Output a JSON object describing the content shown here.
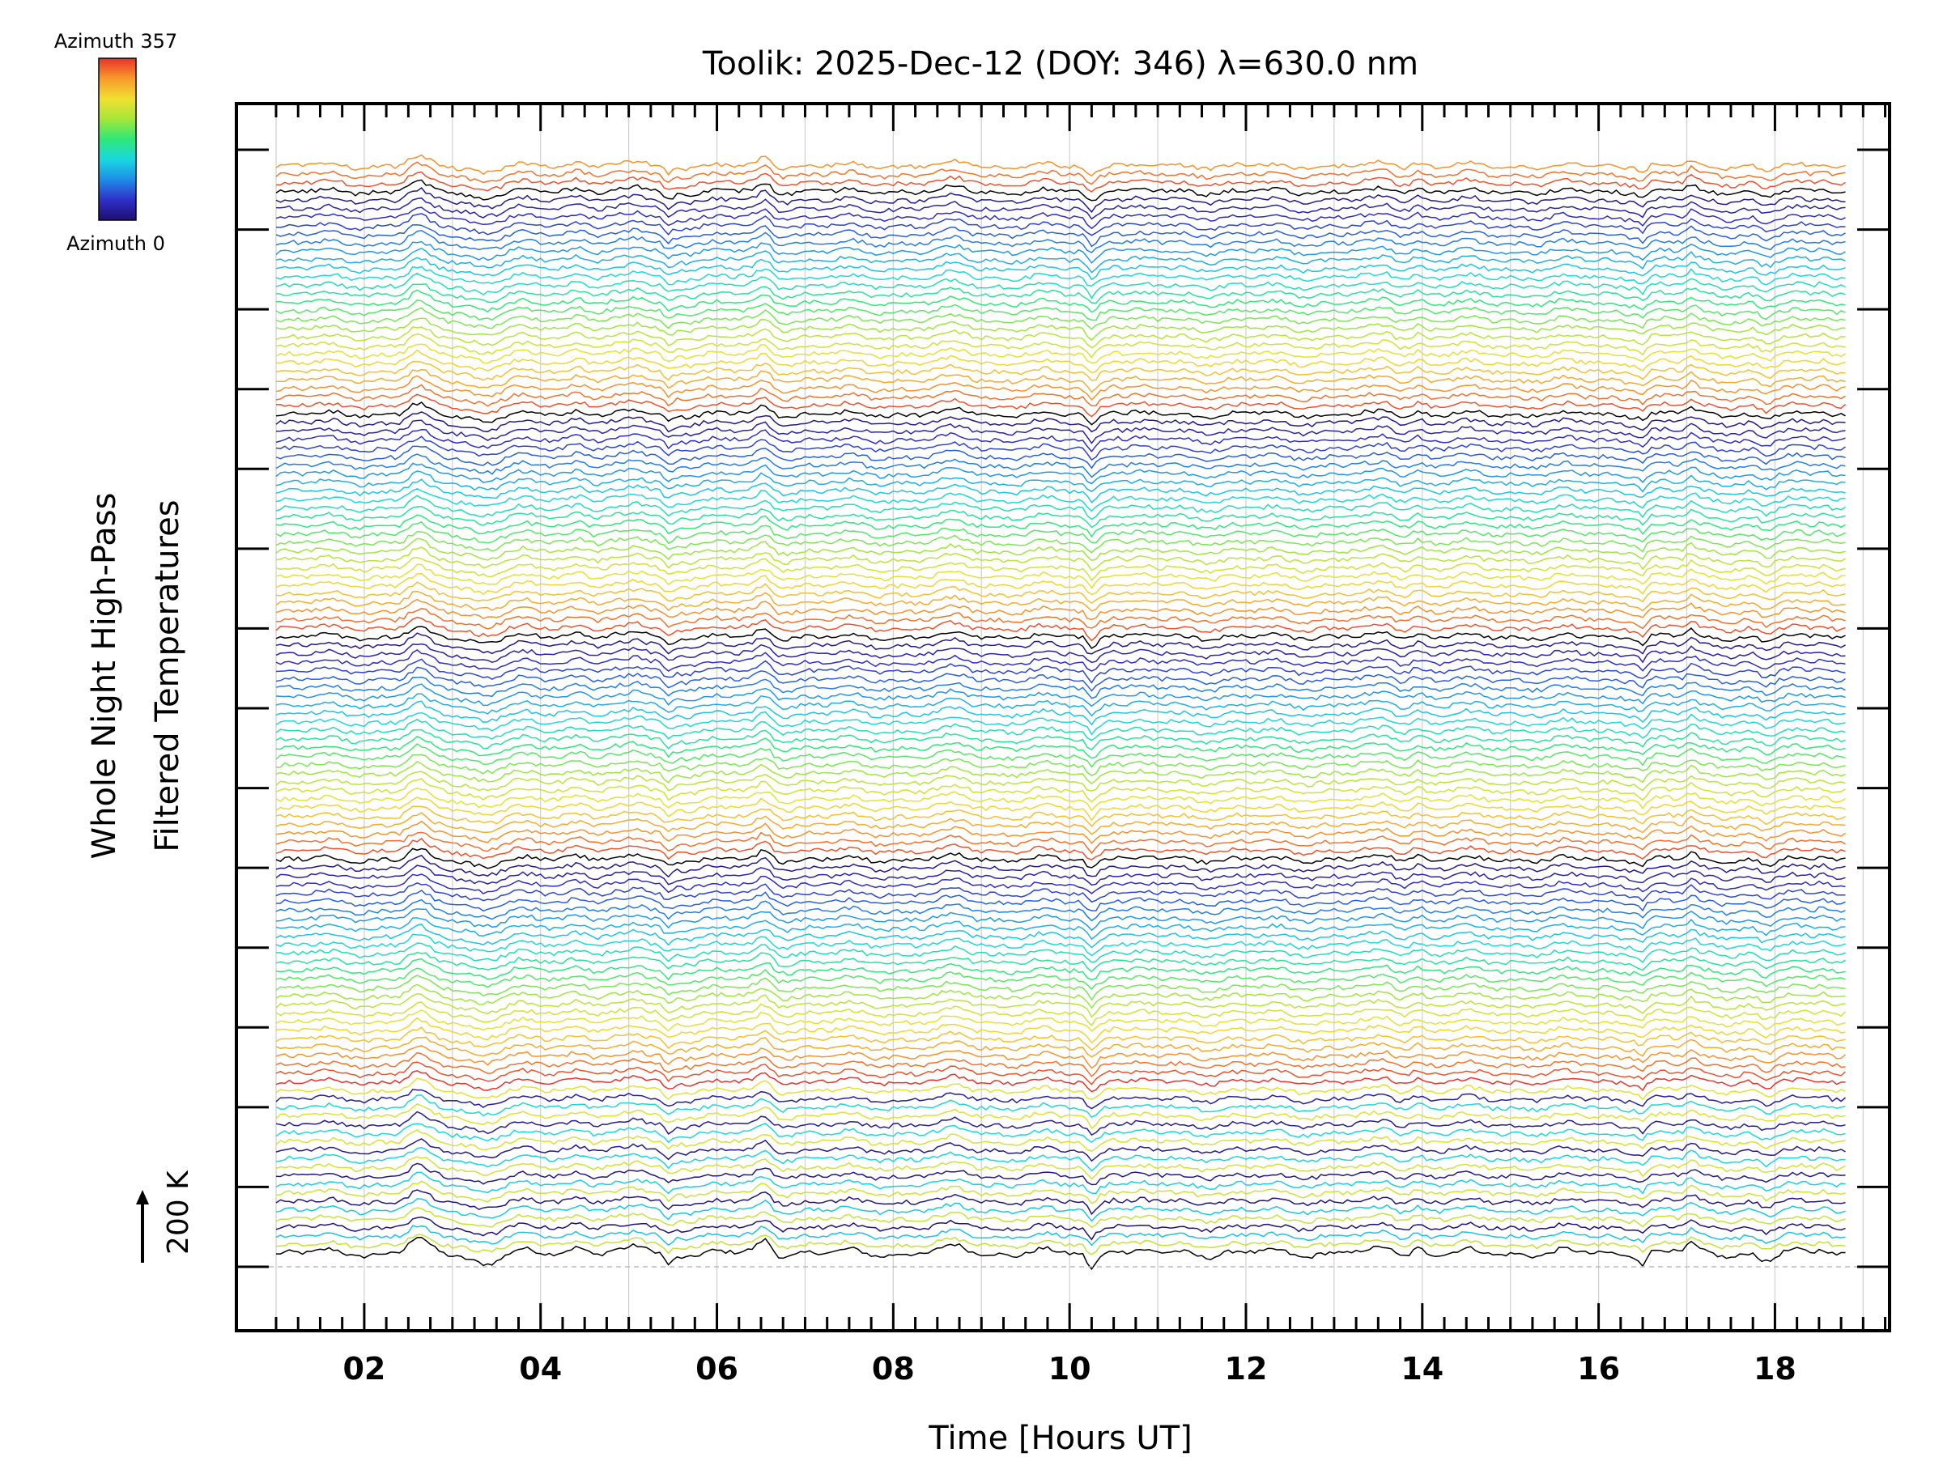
{
  "chart_data": {
    "type": "line",
    "title": "Toolik: 2025-Dec-12 (DOY: 346) λ=630.0 nm",
    "xlabel": "Time [Hours UT]",
    "ylabel_lines": [
      "Whole Night High-Pass",
      "Filtered Temperatures"
    ],
    "xlim": [
      0.55,
      19.3
    ],
    "x_ticks": [
      2,
      4,
      6,
      8,
      10,
      12,
      14,
      16,
      18
    ],
    "x_tick_labels": [
      "02",
      "04",
      "06",
      "08",
      "10",
      "12",
      "14",
      "16",
      "18"
    ],
    "x_minor_step": 0.25,
    "y_major_tick_count": 15,
    "data_start_hour": 1.0,
    "data_end_hour": 18.8,
    "num_series": 128,
    "azimuth_range": [
      0,
      357
    ],
    "legend_top_label": "Azimuth  357",
    "legend_bottom_label": "Azimuth  0",
    "scale_bar_label": "200 K",
    "colormap": [
      "#1e0f6e",
      "#2f2fc8",
      "#1f8ce8",
      "#18d8e0",
      "#2ee87a",
      "#a6e63a",
      "#f0e030",
      "#f89a2a",
      "#e8322a"
    ],
    "baseline_color": "#000000",
    "features": [
      {
        "hour": 2.6,
        "amp": 12,
        "width": 0.14
      },
      {
        "hour": 3.35,
        "amp": -8,
        "width": 0.22
      },
      {
        "hour": 4.45,
        "amp": 7,
        "width": 0.14
      },
      {
        "hour": 5.1,
        "amp": 6,
        "width": 0.12
      },
      {
        "hour": 5.45,
        "amp": -10,
        "width": 0.07
      },
      {
        "hour": 6.55,
        "amp": 11,
        "width": 0.1
      },
      {
        "hour": 8.75,
        "amp": 5,
        "width": 0.18
      },
      {
        "hour": 10.25,
        "amp": -14,
        "width": 0.07
      },
      {
        "hour": 10.5,
        "amp": 6,
        "width": 0.1
      },
      {
        "hour": 13.6,
        "amp": 5,
        "width": 0.1
      },
      {
        "hour": 13.95,
        "amp": 5,
        "width": 0.08
      },
      {
        "hour": 16.5,
        "amp": -8,
        "width": 0.05
      },
      {
        "hour": 17.05,
        "amp": 8,
        "width": 0.07
      },
      {
        "hour": 17.9,
        "amp": -9,
        "width": 0.12
      },
      {
        "hour": 18.55,
        "amp": 7,
        "width": 0.1
      }
    ]
  }
}
